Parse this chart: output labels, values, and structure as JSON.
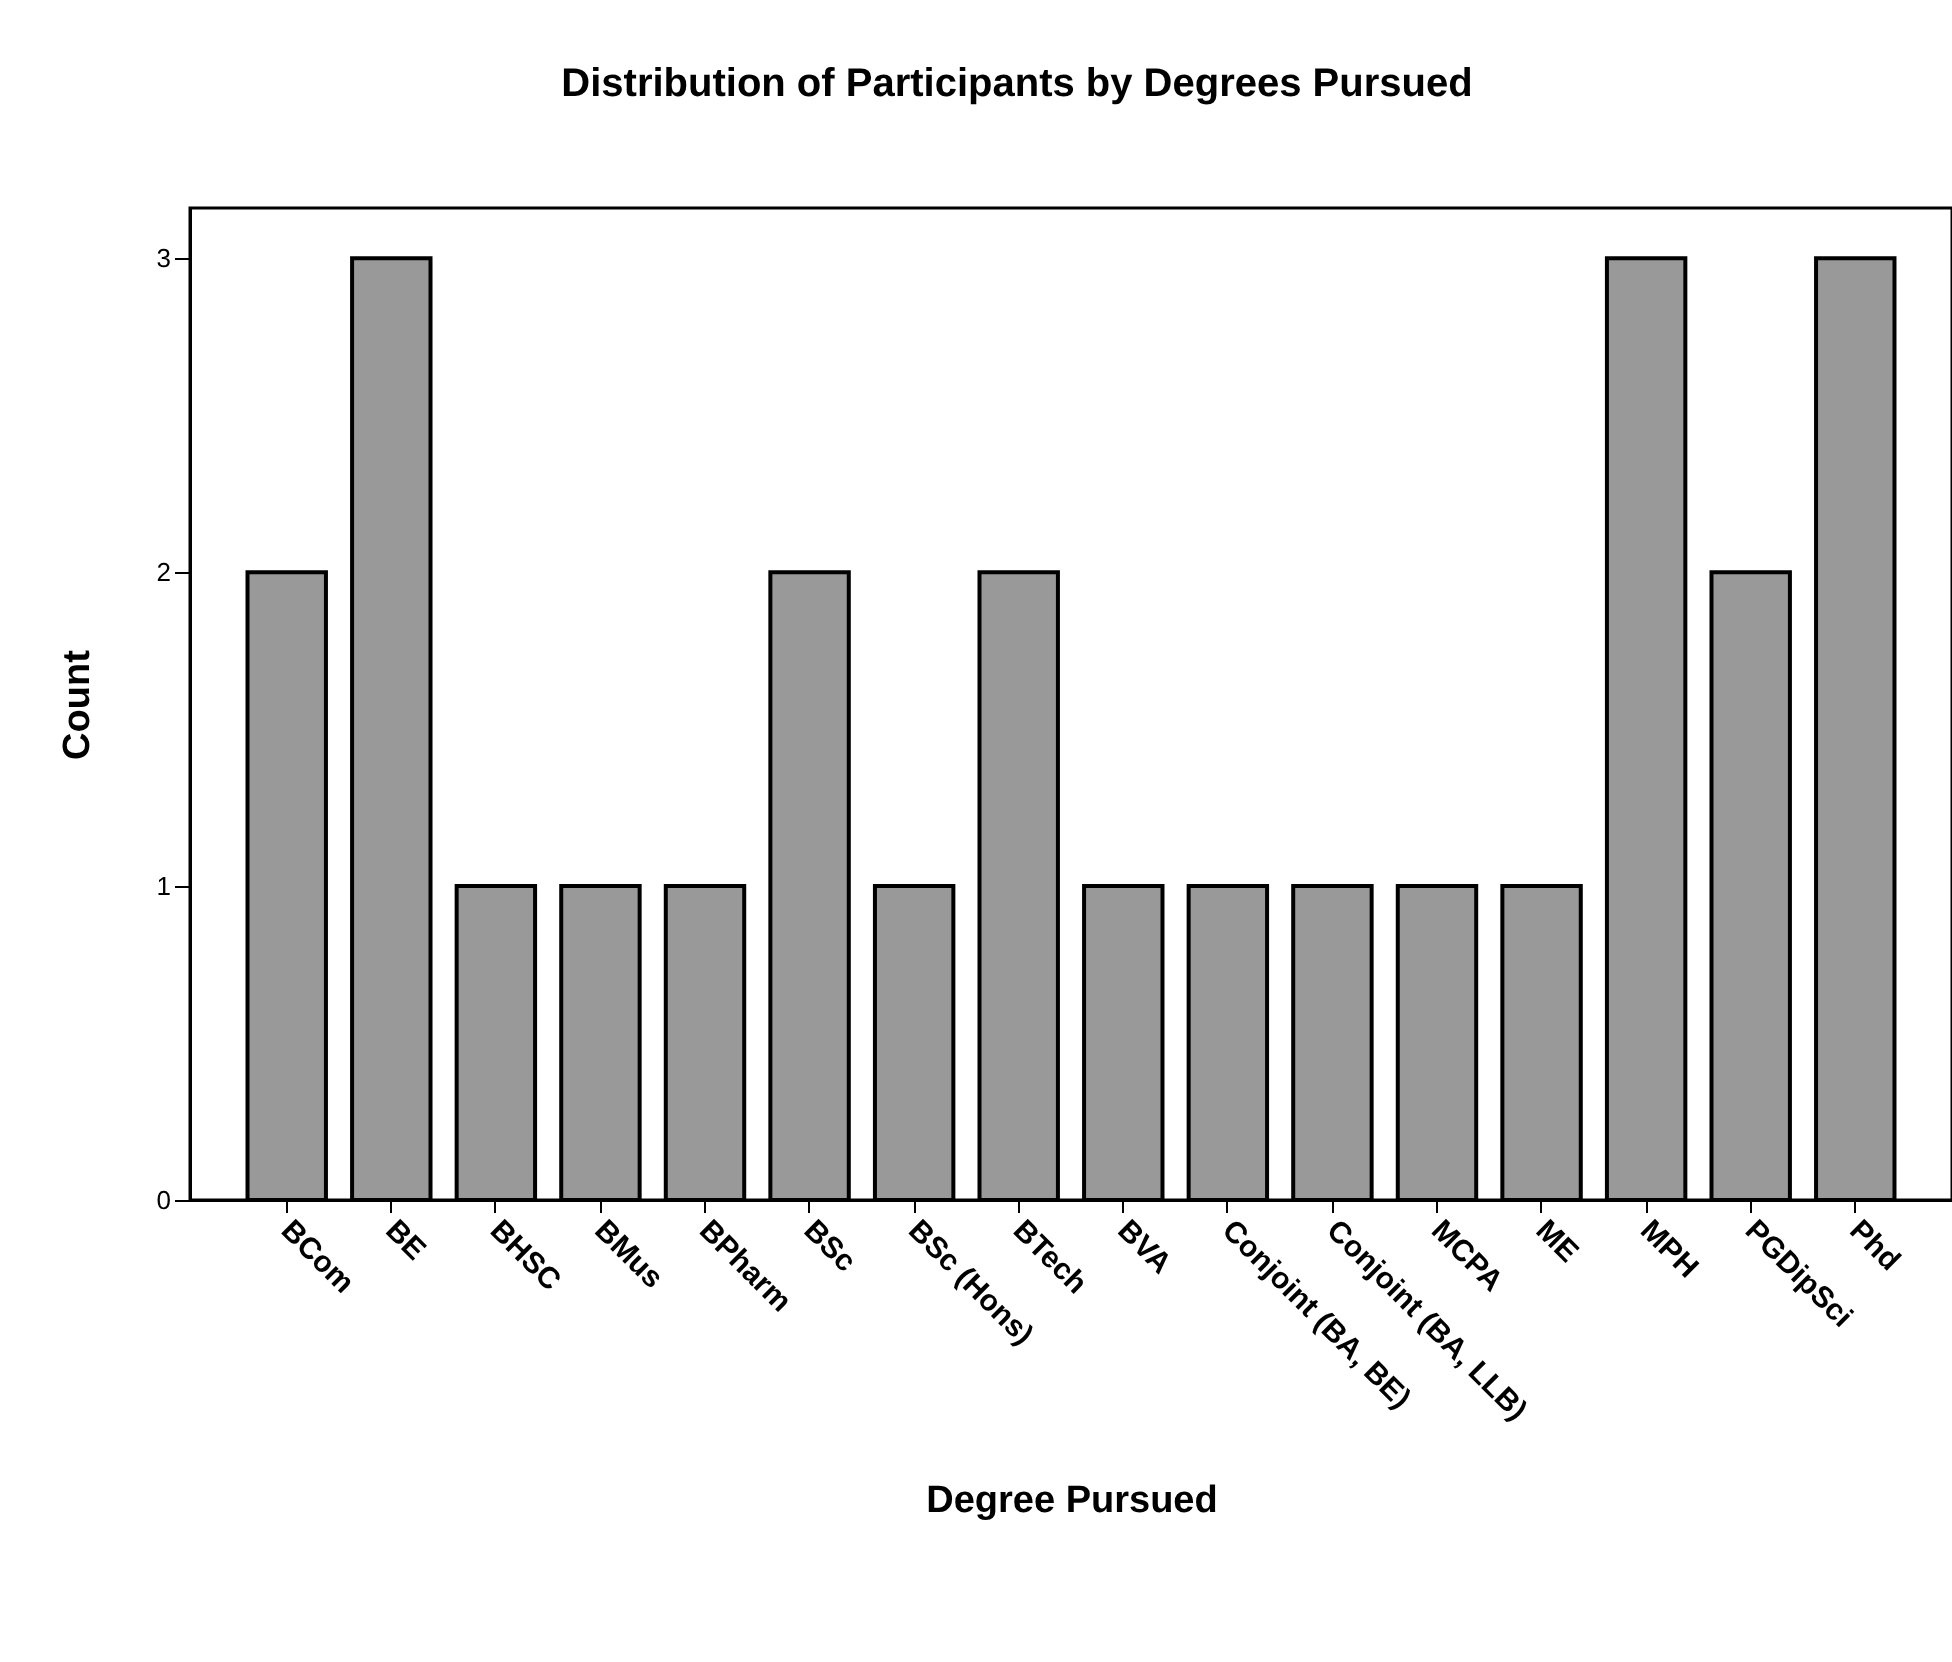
{
  "chart_data": {
    "type": "bar",
    "title": "Distribution of Participants by Degrees Pursued",
    "xlabel": "Degree Pursued",
    "ylabel": "Count",
    "categories": [
      "BCom",
      "BE",
      "BHSC",
      "BMus",
      "BPharm",
      "BSc",
      "BSc (Hons)",
      "BTech",
      "BVA",
      "Conjoint (BA, BE)",
      "Conjoint (BA, LLB)",
      "MCPA",
      "ME",
      "MPH",
      "PGDipSci",
      "Phd"
    ],
    "values": [
      2,
      3,
      1,
      1,
      1,
      2,
      1,
      2,
      1,
      1,
      1,
      1,
      1,
      3,
      2,
      3
    ],
    "color": "#999999",
    "ylim": [
      0,
      3.16
    ],
    "yticks": [
      0,
      1,
      2,
      3
    ],
    "grid": false
  }
}
